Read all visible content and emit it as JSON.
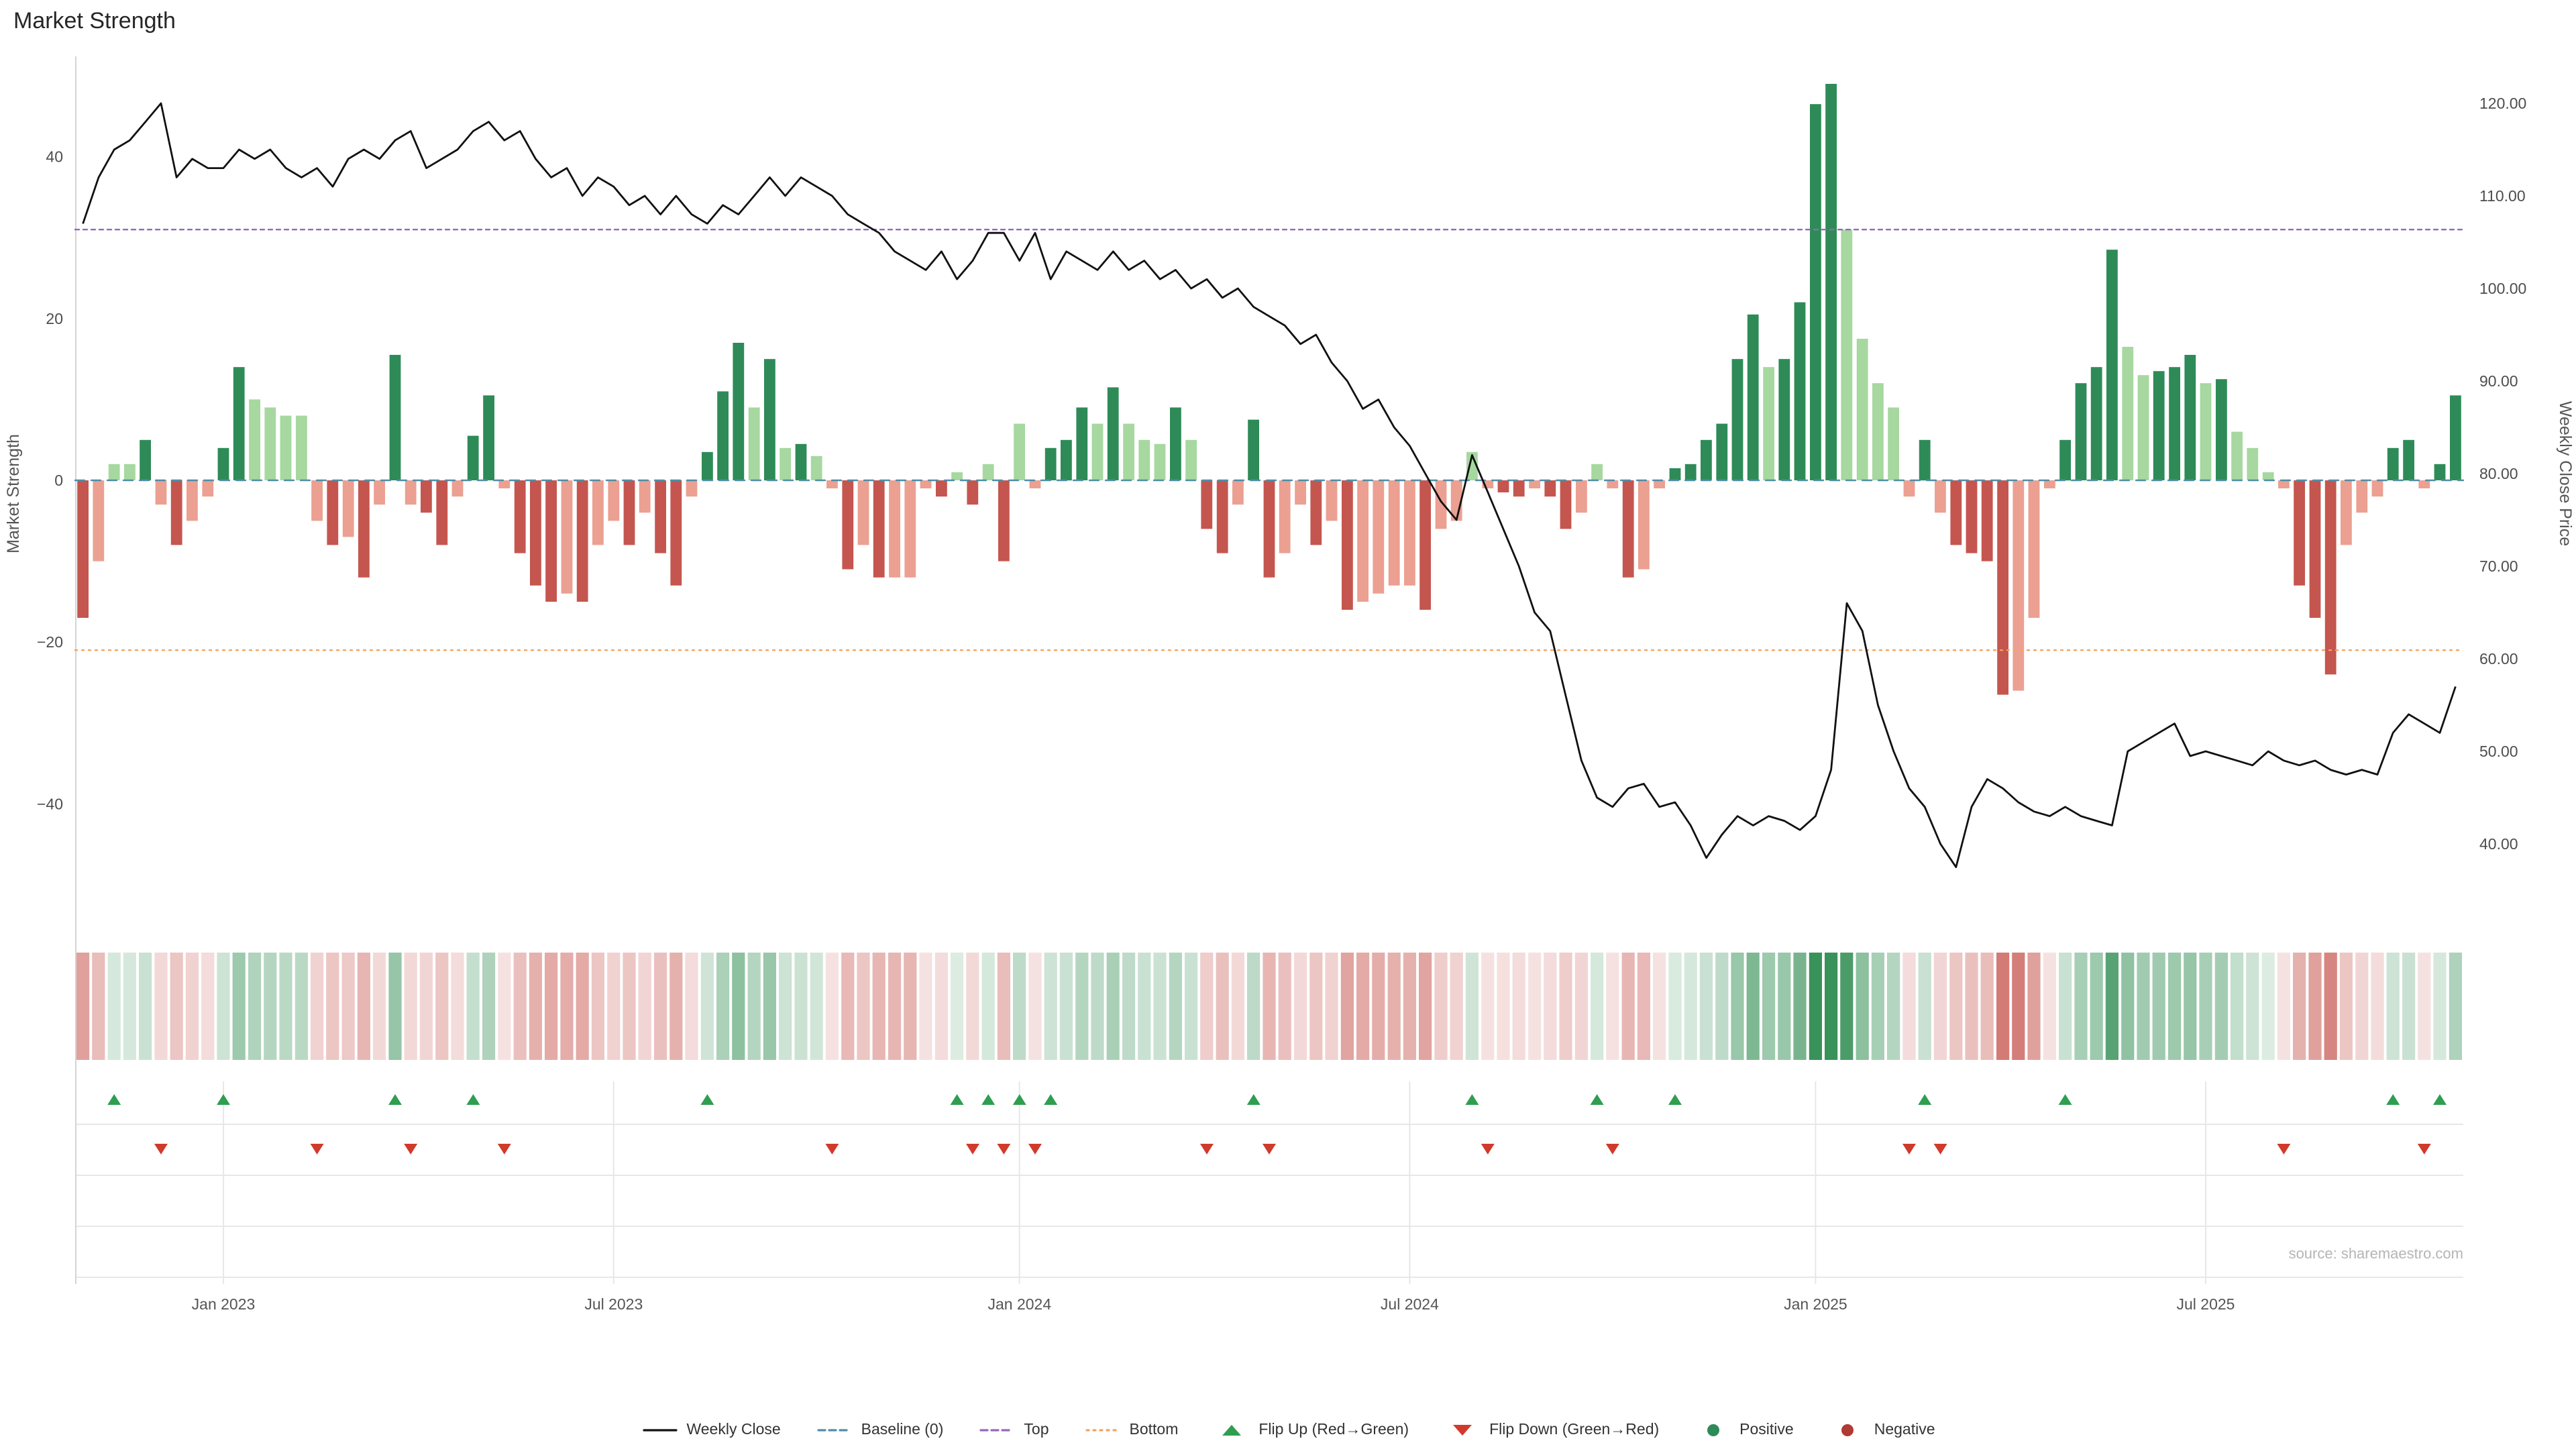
{
  "title": "Market Strength",
  "source_text": "source: sharemaestro.com",
  "axes": {
    "left_label": "Market Strength",
    "right_label": "Weekly Close Price",
    "left_ticks": [
      "40",
      "20",
      "0",
      "−20",
      "−40"
    ],
    "left_tick_values": [
      40,
      20,
      0,
      -20,
      -40
    ],
    "right_ticks": [
      "120.00",
      "110.00",
      "100.00",
      "90.00",
      "80.00",
      "70.00",
      "60.00",
      "50.00",
      "40.00"
    ],
    "right_tick_values": [
      120,
      110,
      100,
      90,
      80,
      70,
      60,
      50,
      40
    ],
    "x_ticks": [
      "Jan 2023",
      "Jul 2023",
      "Jan 2024",
      "Jul 2024",
      "Jan 2025",
      "Jul 2025"
    ],
    "x_tick_weeks": [
      9,
      34,
      60,
      85,
      111,
      136
    ]
  },
  "colors": {
    "bar_green_dark": "#2e8b57",
    "bar_green_light": "#a6d8a0",
    "bar_red_dark": "#c4564f",
    "bar_red_light": "#eba092",
    "heat_green": "46,140,80",
    "heat_red": "197,81,74",
    "line": "#111111",
    "baseline": "#4e8ea8",
    "top_line": "#9467bd",
    "bottom_line": "#f5a35c",
    "flip_up": "#2f9e4f",
    "flip_down": "#d03a2b",
    "grid": "#e7e7e7",
    "spine": "#d4d4d4"
  },
  "legend": {
    "items": [
      {
        "key": "weekly-close",
        "label": "Weekly Close",
        "glyph": "line",
        "color": "#111111"
      },
      {
        "key": "baseline",
        "label": "Baseline (0)",
        "glyph": "dash",
        "color": "#4e8ea8"
      },
      {
        "key": "top",
        "label": "Top",
        "glyph": "dash",
        "color": "#9467bd"
      },
      {
        "key": "bottom",
        "label": "Bottom",
        "glyph": "dotline",
        "color": "#f5a35c"
      },
      {
        "key": "flip-up",
        "label": "Flip Up (Red→Green)",
        "glyph": "tri-up",
        "color": "#2f9e4f"
      },
      {
        "key": "flip-down",
        "label": "Flip Down (Green→Red)",
        "glyph": "tri-down",
        "color": "#d03a2b"
      },
      {
        "key": "positive",
        "label": "Positive",
        "glyph": "dot",
        "color": "#2e8b57"
      },
      {
        "key": "negative",
        "label": "Negative",
        "glyph": "dot",
        "color": "#b03a34"
      }
    ]
  },
  "chart_data": {
    "type": "bar+line",
    "title": "Market Strength",
    "frequency": "weekly",
    "n_points": 153,
    "x_range": [
      "Nov 2022",
      "Oct 2025"
    ],
    "x_tick_labels": [
      "Jan 2023",
      "Jul 2023",
      "Jan 2024",
      "Jul 2024",
      "Jan 2025",
      "Jul 2025"
    ],
    "x_tick_weeks": [
      9,
      34,
      60,
      85,
      111,
      136
    ],
    "left_axis": {
      "label": "Market Strength",
      "range": [
        -56,
        52
      ],
      "grid": false
    },
    "right_axis": {
      "label": "Weekly Close Price",
      "range": [
        36.5,
        123
      ],
      "grid": false
    },
    "legend_position": "bottom-center",
    "series": [
      {
        "name": "Market Strength",
        "type": "bar",
        "axis": "left",
        "values": [
          -17,
          -10,
          2,
          2,
          5,
          -3,
          -8,
          -5,
          -2,
          4,
          14,
          10,
          9,
          8,
          8,
          -5,
          -8,
          -7,
          -12,
          -3,
          15.5,
          -3,
          -4,
          -8,
          -2,
          5.5,
          10.5,
          -1,
          -9,
          -13,
          -15,
          -14,
          -15,
          -8,
          -5,
          -8,
          -4,
          -9,
          -13,
          -2,
          3.5,
          11,
          17,
          9,
          15,
          4,
          4.5,
          3,
          -1,
          -11,
          -8,
          -12,
          -12,
          -12,
          -1,
          -2,
          1,
          -3,
          2,
          -10,
          7,
          -1,
          4,
          5,
          9,
          7,
          11.5,
          7,
          5,
          4.5,
          9,
          5,
          -6,
          -9,
          -3,
          7.5,
          -12,
          -9,
          -3,
          -8,
          -5,
          -16,
          -15,
          -14,
          -13,
          -13,
          -16,
          -6,
          -5,
          3.5,
          -1,
          -1.5,
          -2,
          -1,
          -2,
          -6,
          -4,
          2,
          -1,
          -12,
          -11,
          -1,
          1.5,
          2,
          5,
          7,
          15,
          20.5,
          14,
          15,
          22,
          46.5,
          49,
          31,
          17.5,
          12,
          9,
          -2,
          5,
          -4,
          -8,
          -9,
          -10,
          -26.5,
          -26,
          -17,
          -1,
          5,
          12,
          14,
          28.5,
          16.5,
          13,
          13.5,
          14,
          15.5,
          12,
          12.5,
          6,
          4,
          1,
          -1,
          -13,
          -17,
          -24,
          -8,
          -4,
          -2,
          4,
          5,
          -1,
          2,
          10.5
        ]
      },
      {
        "name": "Weekly Close",
        "type": "line",
        "axis": "right",
        "values": [
          107,
          112,
          115,
          116,
          118,
          120,
          112,
          114,
          113,
          113,
          115,
          114,
          115,
          113,
          112,
          113,
          111,
          114,
          115,
          114,
          116,
          117,
          113,
          114,
          115,
          117,
          118,
          116,
          117,
          114,
          112,
          113,
          110,
          112,
          111,
          109,
          110,
          108,
          110,
          108,
          107,
          109,
          108,
          110,
          112,
          110,
          112,
          111,
          110,
          108,
          107,
          106,
          104,
          103,
          102,
          104,
          101,
          103,
          106,
          106,
          103,
          106,
          101,
          104,
          103,
          102,
          104,
          102,
          103,
          101,
          102,
          100,
          101,
          99,
          100,
          98,
          97,
          96,
          94,
          95,
          92,
          90,
          87,
          88,
          85,
          83,
          80,
          77,
          75,
          82,
          78,
          74,
          70,
          65,
          63,
          56,
          49,
          45,
          44,
          46,
          46.5,
          44,
          44.5,
          42,
          38.5,
          41,
          43,
          42,
          43,
          42.5,
          41.5,
          43,
          48,
          66,
          63,
          55,
          50,
          46,
          44,
          40,
          37.5,
          44,
          47,
          46,
          44.5,
          43.5,
          43,
          44,
          43,
          42.5,
          42,
          50,
          51,
          52,
          53,
          49.5,
          50,
          49.5,
          49,
          48.5,
          50,
          49,
          48.5,
          49,
          48,
          47.5,
          48,
          47.5,
          52,
          54,
          53,
          52,
          57
        ]
      }
    ],
    "reference_lines": [
      {
        "name": "Baseline (0)",
        "axis": "left",
        "value": 0,
        "style": "dashed"
      },
      {
        "name": "Top",
        "axis": "left",
        "value": 31,
        "style": "dashed"
      },
      {
        "name": "Bottom",
        "axis": "left",
        "value": -21,
        "style": "dotted"
      }
    ],
    "heatmap_strip": {
      "source": "bar_values",
      "position": "below_main_plot"
    },
    "flip_up_weeks": [
      2,
      9,
      20,
      25,
      40,
      56,
      58,
      60,
      62,
      75,
      89,
      97,
      102,
      118,
      127,
      148,
      151
    ],
    "flip_down_weeks": [
      5,
      15,
      21,
      27,
      48,
      57,
      59,
      61,
      72,
      76,
      90,
      98,
      117,
      119,
      141,
      150
    ]
  }
}
